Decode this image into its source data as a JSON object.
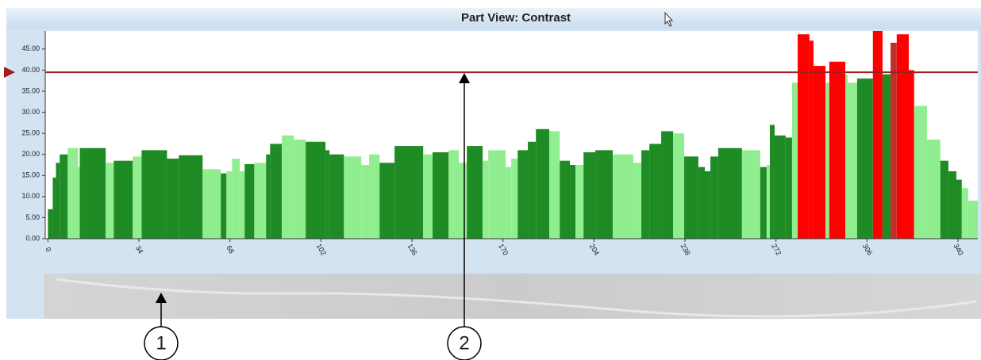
{
  "chart_data": {
    "type": "bar",
    "title": "Part View:  Contrast",
    "x": [
      0,
      1.8,
      3,
      4.4,
      7.4,
      11.3,
      11.9,
      21.6,
      24.6,
      31.7,
      35,
      44.5,
      48.9,
      57.8,
      64.6,
      66.7,
      68.8,
      71.7,
      73.5,
      77.1,
      81.5,
      83,
      87.4,
      91.9,
      96.3,
      103.7,
      105.2,
      110.6,
      117.1,
      120,
      123.9,
      129.5,
      140.2,
      143.7,
      149.7,
      153.5,
      156.5,
      162.4,
      164.5,
      171,
      173.1,
      175.5,
      179.3,
      182.3,
      187.3,
      191.2,
      195,
      197.1,
      200.1,
      204.5,
      211,
      218.7,
      221.7,
      224.7,
      229.1,
      233.6,
      237.7,
      243,
      245.4,
      247.5,
      250.4,
      259.3,
      266.1,
      268.5,
      269.7,
      271.5,
      275.6,
      278,
      280.1,
      284.5,
      286,
      290.5,
      291.9,
      297.9,
      298.8,
      302.3,
      308.2,
      311.8,
      314.8,
      317.1,
      321.6,
      323.6,
      328.4,
      333.4,
      336.4,
      339.4,
      341.4,
      343.8
    ],
    "values": [
      7,
      14.5,
      18,
      20,
      21.5,
      17,
      21.5,
      18,
      18.5,
      19.5,
      21,
      19,
      19.8,
      16.5,
      15.5,
      16,
      19,
      16,
      17.7,
      18,
      20,
      22.5,
      24.5,
      23.5,
      23,
      21,
      20,
      19.5,
      17.5,
      20,
      18,
      22,
      20,
      20.5,
      21,
      18,
      22,
      18.5,
      21,
      17,
      19,
      21,
      23,
      26,
      25.5,
      18.5,
      17.5,
      17.5,
      20.5,
      21,
      20,
      18,
      21,
      22.5,
      25.5,
      25,
      19.5,
      17,
      16,
      19.5,
      21.5,
      21,
      17,
      17.5,
      27,
      24.5,
      24,
      37,
      48.5,
      47,
      41,
      37,
      42,
      39,
      37,
      38,
      49.3,
      39,
      46.5,
      48.5,
      40,
      31.5,
      23.5,
      18.5,
      16,
      14,
      12,
      9
    ],
    "colors": [
      "#1f8b24",
      "#1f8b24",
      "#1f8b24",
      "#1f8b24",
      "#90ee90",
      "#90ee90",
      "#1f8b24",
      "#90ee90",
      "#1f8b24",
      "#90ee90",
      "#1f8b24",
      "#1f8b24",
      "#1f8b24",
      "#90ee90",
      "#1f8b24",
      "#90ee90",
      "#90ee90",
      "#90ee90",
      "#1f8b24",
      "#90ee90",
      "#1f8b24",
      "#1f8b24",
      "#90ee90",
      "#90ee90",
      "#1f8b24",
      "#1f8b24",
      "#1f8b24",
      "#90ee90",
      "#90ee90",
      "#90ee90",
      "#1f8b24",
      "#1f8b24",
      "#90ee90",
      "#1f8b24",
      "#90ee90",
      "#90ee90",
      "#1f8b24",
      "#90ee90",
      "#90ee90",
      "#90ee90",
      "#90ee90",
      "#1f8b24",
      "#1f8b24",
      "#1f8b24",
      "#90ee90",
      "#1f8b24",
      "#1f8b24",
      "#90ee90",
      "#1f8b24",
      "#1f8b24",
      "#90ee90",
      "#90ee90",
      "#1f8b24",
      "#1f8b24",
      "#1f8b24",
      "#90ee90",
      "#1f8b24",
      "#1f8b24",
      "#1f8b24",
      "#1f8b24",
      "#1f8b24",
      "#90ee90",
      "#1f8b24",
      "#90ee90",
      "#1f8b24",
      "#1f8b24",
      "#1f8b24",
      "#90ee90",
      "#ff0000",
      "#ff0000",
      "#ff0000",
      "#90ee90",
      "#ff0000",
      "#90ee90",
      "#90ee90",
      "#1f8b24",
      "#ff0000",
      "#1f8b24",
      "#c0302a",
      "#ff0000",
      "#ff0000",
      "#90ee90",
      "#90ee90",
      "#1f8b24",
      "#1f8b24",
      "#1f8b24",
      "#90ee90",
      "#90ee90"
    ],
    "xlim": [
      -1,
      347.4
    ],
    "ylim": [
      0,
      49.3
    ],
    "xticks": [
      0,
      34,
      68,
      102,
      136,
      170,
      204,
      238,
      272,
      306,
      340
    ],
    "yticks": [
      {
        "value": 0,
        "label": "0.00"
      },
      {
        "value": 5,
        "label": "5.00"
      },
      {
        "value": 10,
        "label": "10.00"
      },
      {
        "value": 15,
        "label": "15.00"
      },
      {
        "value": 20,
        "label": "20.00"
      },
      {
        "value": 25,
        "label": "25.00"
      },
      {
        "value": 30,
        "label": "30.00"
      },
      {
        "value": 35,
        "label": "35.00"
      },
      {
        "value": 40,
        "label": "40.00"
      },
      {
        "value": 45,
        "label": "45.00"
      }
    ],
    "threshold": 39.5,
    "threshold_color": "#a31d1d"
  },
  "callouts": [
    "1",
    "2"
  ]
}
